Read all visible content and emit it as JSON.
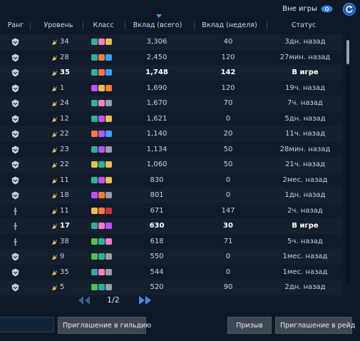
{
  "topbar": {
    "offline_label": "Вне игры"
  },
  "columns": {
    "rank": "Ранг",
    "level": "Уровень",
    "class": "Класс",
    "total": "Вклад (всего)",
    "weekly": "Вклад (неделя)",
    "status": "Статус"
  },
  "rows": [
    {
      "rank": "elite",
      "level": "34",
      "classes": [
        "#2bb0a0",
        "#ff7dc0",
        "#e8c050"
      ],
      "total": "3,306",
      "weekly": "40",
      "status": "3дн. назад",
      "online": false
    },
    {
      "rank": "elite",
      "level": "28",
      "classes": [
        "#2bb0a0",
        "#ff7a3a",
        "#3aa0ff"
      ],
      "total": "2,450",
      "weekly": "120",
      "status": "27мин. назад",
      "online": false
    },
    {
      "rank": "elite",
      "level": "35",
      "classes": [
        "#2bb0a0",
        "#ff7a3a",
        "#3aa0ff"
      ],
      "total": "1,748",
      "weekly": "142",
      "status": "В игре",
      "online": true
    },
    {
      "rank": "elite",
      "level": "1",
      "classes": [
        "#c050ff",
        "#e8c050",
        "#ff7a3a"
      ],
      "total": "1,690",
      "weekly": "120",
      "status": "19ч. назад",
      "online": false
    },
    {
      "rank": "elite",
      "level": "24",
      "classes": [
        "#2bb0a0",
        "#ff7dc0",
        "#9aa0a8"
      ],
      "total": "1,670",
      "weekly": "70",
      "status": "7ч. назад",
      "online": false
    },
    {
      "rank": "elite",
      "level": "12",
      "classes": [
        "#2bb0a0",
        "#c050ff",
        "#e8c050"
      ],
      "total": "1,621",
      "weekly": "0",
      "status": "5дн. назад",
      "online": false
    },
    {
      "rank": "elite",
      "level": "22",
      "classes": [
        "#ff7a3a",
        "#c050ff",
        "#3aa0ff"
      ],
      "total": "1,140",
      "weekly": "20",
      "status": "11ч. назад",
      "online": false
    },
    {
      "rank": "elite",
      "level": "23",
      "classes": [
        "#2bb0a0",
        "#c050ff",
        "#9aa0a8"
      ],
      "total": "1,134",
      "weekly": "50",
      "status": "28мин. назад",
      "online": false
    },
    {
      "rank": "elite",
      "level": "22",
      "classes": [
        "#e8c050",
        "#2bb0a0",
        "#e8c050"
      ],
      "total": "1,060",
      "weekly": "50",
      "status": "21ч. назад",
      "online": false
    },
    {
      "rank": "elite",
      "level": "11",
      "classes": [
        "#2bb0a0",
        "#c050ff",
        "#e8c050"
      ],
      "total": "830",
      "weekly": "0",
      "status": "2мес. назад",
      "online": false
    },
    {
      "rank": "elite",
      "level": "18",
      "classes": [
        "#c050ff",
        "#ff7a3a",
        "#9aa0a8"
      ],
      "total": "801",
      "weekly": "0",
      "status": "1дн. назад",
      "online": false
    },
    {
      "rank": "member",
      "level": "11",
      "classes": [
        "#e8c050",
        "#ff7a3a",
        "#d03040"
      ],
      "total": "671",
      "weekly": "147",
      "status": "2ч. назад",
      "online": false
    },
    {
      "rank": "member",
      "level": "17",
      "classes": [
        "#2bb0a0",
        "#ff7dc0",
        "#c050ff"
      ],
      "total": "630",
      "weekly": "30",
      "status": "В игре",
      "online": true
    },
    {
      "rank": "member",
      "level": "38",
      "classes": [
        "#50c050",
        "#2bb0a0",
        "#ff7dc0"
      ],
      "total": "618",
      "weekly": "71",
      "status": "5ч. назад",
      "online": false
    },
    {
      "rank": "elite",
      "level": "9",
      "classes": [
        "#50c050",
        "#2bb0a0",
        "#9aa0a8"
      ],
      "total": "550",
      "weekly": "0",
      "status": "1мес. назад",
      "online": false
    },
    {
      "rank": "elite",
      "level": "35",
      "classes": [
        "#2bb0a0",
        "#ff7dc0",
        "#9aa0a8"
      ],
      "total": "544",
      "weekly": "0",
      "status": "1мес. назад",
      "online": false
    },
    {
      "rank": "elite",
      "level": "5",
      "classes": [
        "#50c050",
        "#2bb0a0",
        "#9aa0a8"
      ],
      "total": "520",
      "weekly": "90",
      "status": "2дн. назад",
      "online": false
    }
  ],
  "pager": {
    "page": "1/2"
  },
  "buttons": {
    "guild_invite": "Приглашение в гильдию",
    "summon": "Призыв",
    "raid_invite": "Приглашение в рейд"
  }
}
